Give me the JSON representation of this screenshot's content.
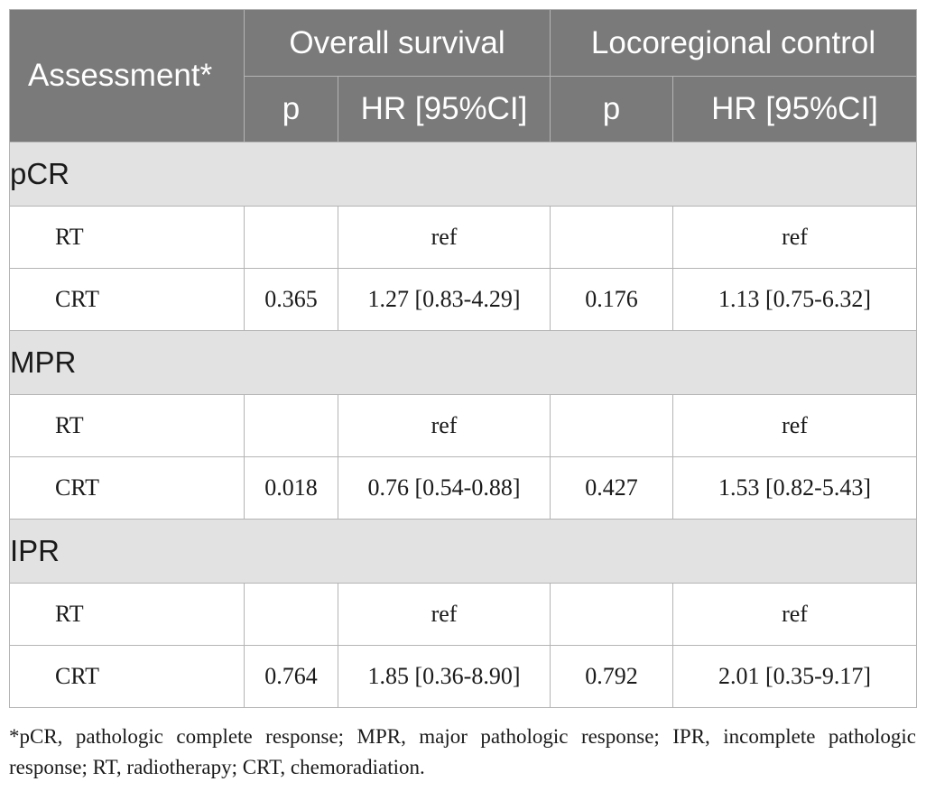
{
  "header": {
    "assessment": "Assessment*",
    "overall_survival": "Overall survival",
    "locoregional_control": "Locoregional control",
    "p": "p",
    "hr": "HR [95%CI]"
  },
  "groups": [
    {
      "name": "pCR",
      "rows": [
        {
          "label": "RT",
          "os_p": "",
          "os_hr": "ref",
          "lc_p": "",
          "lc_hr": "ref"
        },
        {
          "label": "CRT",
          "os_p": "0.365",
          "os_hr": "1.27 [0.83-4.29]",
          "lc_p": "0.176",
          "lc_hr": "1.13 [0.75-6.32]"
        }
      ]
    },
    {
      "name": "MPR",
      "rows": [
        {
          "label": "RT",
          "os_p": "",
          "os_hr": "ref",
          "lc_p": "",
          "lc_hr": "ref"
        },
        {
          "label": "CRT",
          "os_p": "0.018",
          "os_hr": "0.76 [0.54-0.88]",
          "lc_p": "0.427",
          "lc_hr": "1.53 [0.82-5.43]"
        }
      ]
    },
    {
      "name": "IPR",
      "rows": [
        {
          "label": "RT",
          "os_p": "",
          "os_hr": "ref",
          "lc_p": "",
          "lc_hr": "ref"
        },
        {
          "label": "CRT",
          "os_p": "0.764",
          "os_hr": "1.85 [0.36-8.90]",
          "lc_p": "0.792",
          "lc_hr": "2.01 [0.35-9.17]"
        }
      ]
    }
  ],
  "footnote": "*pCR, pathologic complete response; MPR, major pathologic response; IPR, incomplete pathologic response; RT, radiotherapy; CRT, chemoradiation.",
  "colors": {
    "header_bg": "#7a7a7a",
    "group_bg": "#e2e2e2",
    "border": "#b4b4b4"
  }
}
